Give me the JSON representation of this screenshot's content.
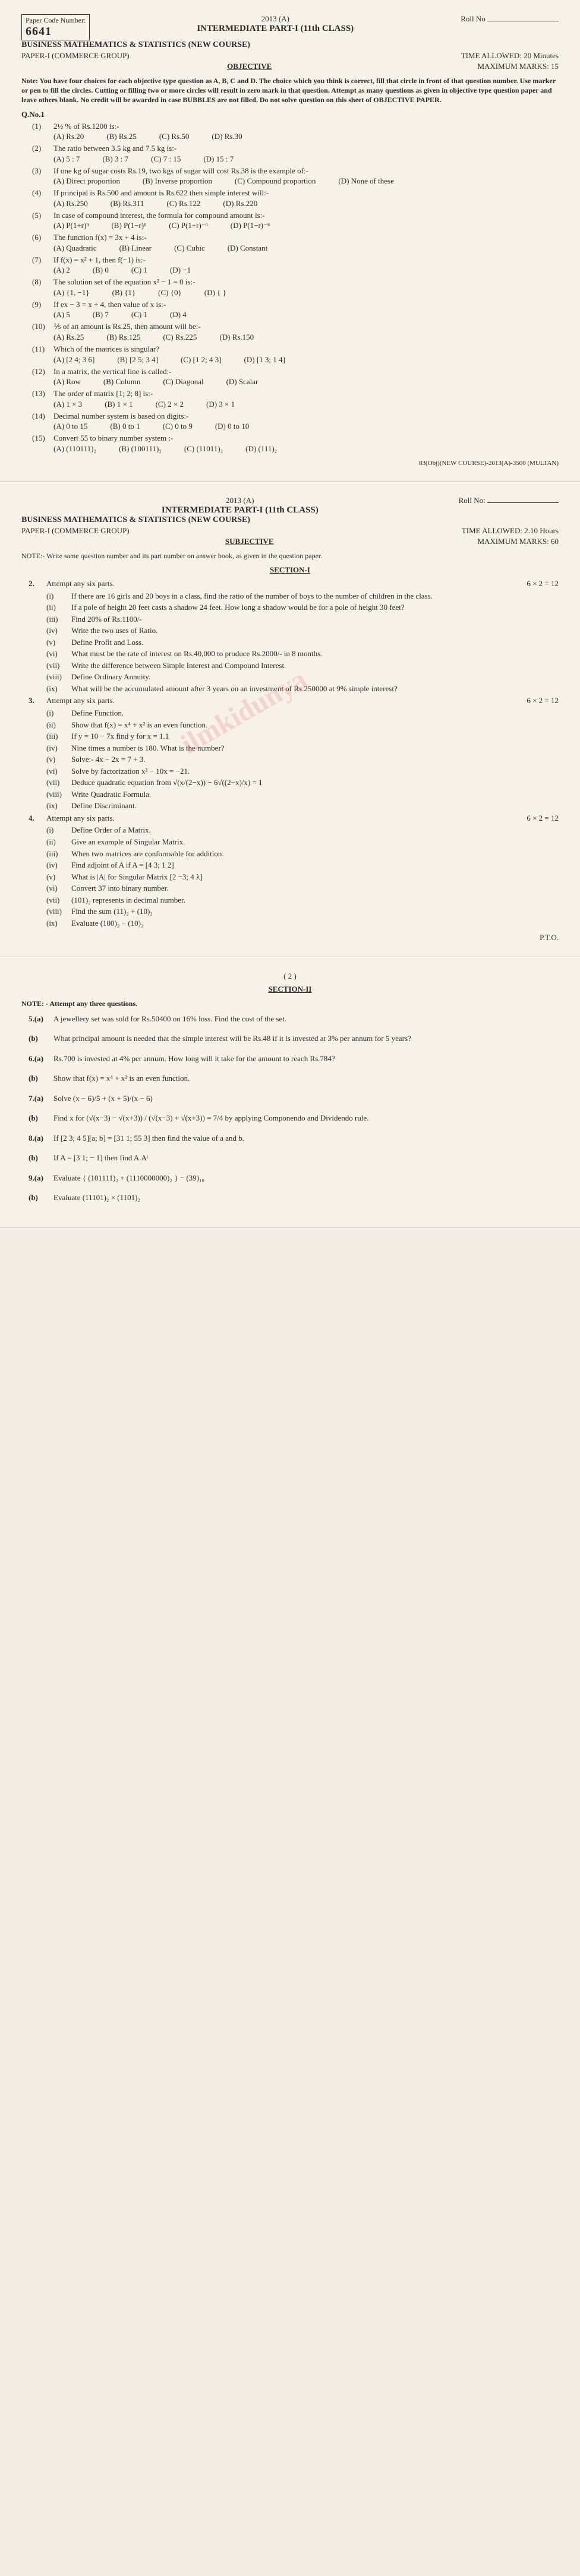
{
  "page1": {
    "paper_code_label": "Paper Code Number:",
    "paper_code": "6641",
    "year": "2013 (A)",
    "roll_label": "Roll No",
    "intermediate_title": "INTERMEDIATE PART-I (11th CLASS)",
    "subject": "BUSINESS MATHEMATICS & STATISTICS (NEW COURSE)",
    "paper": "PAPER-I   (COMMERCE GROUP)",
    "time": "TIME ALLOWED: 20 Minutes",
    "obj": "OBJECTIVE",
    "max_marks": "MAXIMUM MARKS: 15",
    "note": "Note:  You have four choices for each objective type question as A, B, C and D. The choice which you think is correct, fill that circle in front of that question number. Use marker or pen to fill the circles. Cutting or filling two or more circles will result in zero mark in that question. Attempt as many questions as given in objective type question paper and leave others blank. No credit will be awarded in case BUBBLES are not filled.  Do not solve question on this sheet of OBJECTIVE PAPER.",
    "qno": "Q.No.1",
    "q": [
      {
        "n": "(1)",
        "t": "2½ % of Rs.1200 is:-",
        "o": [
          "(A) Rs.20",
          "(B) Rs.25",
          "(C) Rs.50",
          "(D) Rs.30"
        ]
      },
      {
        "n": "(2)",
        "t": "The ratio between 3.5 kg and 7.5 kg is:-",
        "o": [
          "(A) 5 : 7",
          "(B) 3 : 7",
          "(C) 7 : 15",
          "(D) 15 : 7"
        ]
      },
      {
        "n": "(3)",
        "t": "If one kg of sugar costs Rs.19, two kgs of sugar will cost Rs.38 is the example of:-",
        "o": [
          "(A) Direct proportion",
          "(B) Inverse proportion",
          "(C) Compound proportion",
          "(D) None of these"
        ]
      },
      {
        "n": "(4)",
        "t": "If principal is Rs.500 and amount is Rs.622 then simple interest will:-",
        "o": [
          "(A) Rs.250",
          "(B) Rs.311",
          "(C) Rs.122",
          "(D) Rs.220"
        ]
      },
      {
        "n": "(5)",
        "t": "In case of compound interest, the formula for compound amount is:-",
        "o": [
          "(A) P(1+r)ⁿ",
          "(B) P(1−r)ⁿ",
          "(C) P(1+r)⁻ⁿ",
          "(D) P(1−r)⁻ⁿ"
        ]
      },
      {
        "n": "(6)",
        "t": "The function  f(x) = 3x + 4 is:-",
        "o": [
          "(A) Quadratic",
          "(B) Linear",
          "(C) Cubic",
          "(D) Constant"
        ]
      },
      {
        "n": "(7)",
        "t": "If  f(x) = x² + 1,  then  f(−1) is:-",
        "o": [
          "(A) 2",
          "(B) 0",
          "(C) 1",
          "(D) −1"
        ]
      },
      {
        "n": "(8)",
        "t": "The solution set of the equation   x² − 1 = 0 is:-",
        "o": [
          "(A) {1, −1}",
          "(B) {1}",
          "(C) {0}",
          "(D) { }"
        ]
      },
      {
        "n": "(9)",
        "t": "If   ex − 3 = x + 4,  then value of  x  is:-",
        "o": [
          "(A) 5",
          "(B) 7",
          "(C) 1",
          "(D) 4"
        ]
      },
      {
        "n": "(10)",
        "t": "⅕ of an amount is Rs.25, then amount will be:-",
        "o": [
          "(A) Rs.25",
          "(B) Rs.125",
          "(C) Rs.225",
          "(D) Rs.150"
        ]
      },
      {
        "n": "(11)",
        "t": "Which of the matrices is singular?",
        "o": [
          "(A) [2 4; 3 6]",
          "(B) [2 5; 3 4]",
          "(C) [1 2; 4 3]",
          "(D) [1 3; 1 4]"
        ]
      },
      {
        "n": "(12)",
        "t": "In a matrix, the vertical line is called:-",
        "o": [
          "(A) Row",
          "(B) Column",
          "(C) Diagonal",
          "(D) Scalar"
        ]
      },
      {
        "n": "(13)",
        "t": "The order of matrix [1; 2; 8] is:-",
        "o": [
          "(A) 1 × 3",
          "(B) 1 × 1",
          "(C) 2 × 2",
          "(D) 3 × 1"
        ]
      },
      {
        "n": "(14)",
        "t": "Decimal number system is based on digits:-",
        "o": [
          "(A) 0 to 15",
          "(B) 0 to 1",
          "(C) 0 to 9",
          "(D) 0 to 10"
        ]
      },
      {
        "n": "(15)",
        "t": "Convert 55 to binary number system  :-",
        "o": [
          "(A) (110111)₂",
          "(B) (100111)₂",
          "(C) (11011)₂",
          "(D) (111)₂"
        ]
      }
    ],
    "footer": "83(Obj)(NEW COURSE)-2013(A)-3500 (MULTAN)"
  },
  "page2": {
    "year": "2013 (A)",
    "roll_label": "Roll No:",
    "intermediate_title": "INTERMEDIATE PART-I (11th CLASS)",
    "subject": "BUSINESS MATHEMATICS & STATISTICS (NEW COURSE)",
    "paper": "PAPER-I   (COMMERCE GROUP)",
    "time": "TIME ALLOWED: 2.10 Hours",
    "subj": "SUBJECTIVE",
    "max_marks": "MAXIMUM MARKS: 60",
    "note": "NOTE:-   Write same question number and its part number on answer book, as given in the question paper.",
    "section1": "SECTION-I",
    "q2_hdr": "Attempt any six parts.",
    "q2_marks": "6 × 2 = 12",
    "q2": [
      {
        "n": "(i)",
        "t": "If there are 16 girls and 20 boys in a class, find the ratio of the number of boys to the number of children in the class."
      },
      {
        "n": "(ii)",
        "t": "If a pole of height 20 feet casts a shadow 24 feet. How long a shadow would be for a pole of height 30 feet?"
      },
      {
        "n": "(iii)",
        "t": "Find 20% of Rs.1100/-"
      },
      {
        "n": "(iv)",
        "t": "Write the two uses of Ratio."
      },
      {
        "n": "(v)",
        "t": "Define Profit and Loss."
      },
      {
        "n": "(vi)",
        "t": "What must be the rate of interest on Rs.40,000 to produce Rs.2000/- in 8 months."
      },
      {
        "n": "(vii)",
        "t": "Write the difference between Simple Interest and Compound Interest."
      },
      {
        "n": "(viii)",
        "t": "Define Ordinary Annuity."
      },
      {
        "n": "(ix)",
        "t": "What will be the accumulated amount after 3 years on an investment of Rs.250000 at 9% simple interest?"
      }
    ],
    "q3_hdr": "Attempt any six parts.",
    "q3_marks": "6 × 2 = 12",
    "q3": [
      {
        "n": "(i)",
        "t": "Define Function."
      },
      {
        "n": "(ii)",
        "t": "Show that  f(x) = x⁴ + x²  is an even function."
      },
      {
        "n": "(iii)",
        "t": "If   y = 10 − 7x  find  y  for  x = 1.1"
      },
      {
        "n": "(iv)",
        "t": "Nine times a number is 180. What is the number?"
      },
      {
        "n": "(v)",
        "t": "Solve:-   4x − 2x = 7 + 3."
      },
      {
        "n": "(vi)",
        "t": "Solve by factorization   x² − 10x = −21."
      },
      {
        "n": "(vii)",
        "t": "Deduce quadratic equation from  √(x/(2−x)) − 6√((2−x)/x) = 1"
      },
      {
        "n": "(viii)",
        "t": "Write Quadratic Formula."
      },
      {
        "n": "(ix)",
        "t": "Define Discriminant."
      }
    ],
    "q4_hdr": "Attempt any six parts.",
    "q4_marks": "6 × 2 = 12",
    "q4": [
      {
        "n": "(i)",
        "t": "Define Order of a Matrix."
      },
      {
        "n": "(ii)",
        "t": "Give an example of Singular Matrix."
      },
      {
        "n": "(iii)",
        "t": "When two matrices are conformable for addition."
      },
      {
        "n": "(iv)",
        "t": "Find adjoint of  A  if  A = [4 3; 1 2]"
      },
      {
        "n": "(v)",
        "t": "What is |A| for Singular Matrix  [2 −3; 4 λ]"
      },
      {
        "n": "(vi)",
        "t": "Convert 37 into binary number."
      },
      {
        "n": "(vii)",
        "t": "(101)₂  represents in decimal number."
      },
      {
        "n": "(viii)",
        "t": "Find the sum  (11)₂ + (10)₂"
      },
      {
        "n": "(ix)",
        "t": "Evaluate  (100)₂ − (10)₂"
      }
    ],
    "pto": "P.T.O."
  },
  "page3": {
    "page_num": "( 2 )",
    "section2": "SECTION-II",
    "note": "NOTE: -  Attempt any three questions.",
    "q": [
      {
        "n": "5.(a)",
        "t": "A jewellery set was sold for Rs.50400 on 16% loss. Find the cost of the set."
      },
      {
        "n": "(b)",
        "t": "What principal amount is needed that the simple interest will be Rs.48 if it is invested at 3% per annum for 5 years?"
      },
      {
        "n": "6.(a)",
        "t": "Rs.700 is invested at 4% per annum. How long will it take for the amount to reach Rs.784?"
      },
      {
        "n": "(b)",
        "t": "Show that  f(x) = x⁴ + x²   is an even function."
      },
      {
        "n": "7.(a)",
        "t": "Solve   (x − 6)/5 + (x + 5)/(x − 6)"
      },
      {
        "n": "(b)",
        "t": "Find  x  for  (√(x−3) − √(x+3)) / (√(x−3) + √(x+3)) = 7/4  by applying Componendo and Dividendo rule."
      },
      {
        "n": "8.(a)",
        "t": "If  [2 3; 4 5][a; b] = [31 1; 55 3]  then find the value of  a  and  b."
      },
      {
        "n": "(b)",
        "t": "If A = [3 1; − 1]  then find  A.Aᵗ"
      },
      {
        "n": "9.(a)",
        "t": "Evaluate  { (101111)₂ + (1110000000)₂ } − (39)₁₀"
      },
      {
        "n": "(b)",
        "t": "Evaluate   (11101)₂ × (1101)₂"
      }
    ]
  }
}
